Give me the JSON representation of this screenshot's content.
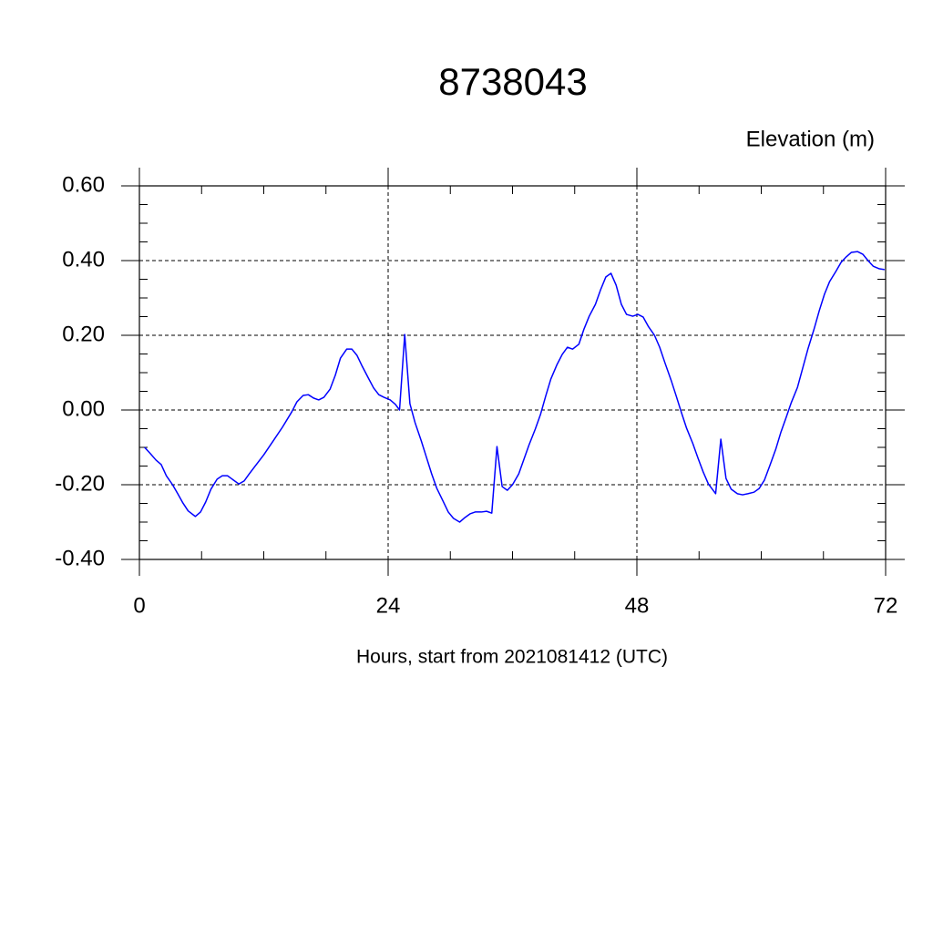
{
  "chart_data": {
    "type": "line",
    "title": "8738043",
    "y_label": "Elevation (m)",
    "x_label": "Hours, start from 2021081412 (UTC)",
    "color": "#0000ff",
    "grid": true,
    "xlim": [
      0,
      72
    ],
    "ylim": [
      -0.4,
      0.6
    ],
    "xticks": [
      0,
      24,
      48,
      72
    ],
    "xminorticks": [
      6,
      12,
      18,
      30,
      36,
      42,
      54,
      60,
      66
    ],
    "yticks": [
      {
        "value": -0.4,
        "label": "-0.40"
      },
      {
        "value": -0.2,
        "label": "-0.20"
      },
      {
        "value": 0,
        "label": "0.00"
      },
      {
        "value": 0.2,
        "label": "0.20"
      },
      {
        "value": 0.4,
        "label": "0.40"
      },
      {
        "value": 0.6,
        "label": "0.60"
      }
    ],
    "yminorticks": [
      -0.35,
      -0.3,
      -0.25,
      -0.15,
      -0.1,
      -0.05,
      0.05,
      0.1,
      0.15,
      0.25,
      0.3,
      0.35,
      0.45,
      0.5,
      0.55
    ],
    "x": [
      0.5,
      1.0,
      1.6,
      2.1,
      2.6,
      3.2,
      3.7,
      4.2,
      4.7,
      5.4,
      5.9,
      6.4,
      6.9,
      7.5,
      8.0,
      8.5,
      9.1,
      9.6,
      10.1,
      10.6,
      11.2,
      12.0,
      12.9,
      13.8,
      14.7,
      15.2,
      15.8,
      16.3,
      16.8,
      17.3,
      17.8,
      18.4,
      18.9,
      19.4,
      20.0,
      20.5,
      21.0,
      21.5,
      22.1,
      22.6,
      23.1,
      23.6,
      24.2,
      24.7,
      25.1,
      25.6,
      26.1,
      26.6,
      27.2,
      27.7,
      28.2,
      28.7,
      29.3,
      29.8,
      30.3,
      30.9,
      31.4,
      31.9,
      32.4,
      33.0,
      33.5,
      34.0,
      34.5,
      35.0,
      35.5,
      36.0,
      36.6,
      37.1,
      37.6,
      38.2,
      38.7,
      39.2,
      39.7,
      40.3,
      40.8,
      41.3,
      41.8,
      42.4,
      42.9,
      43.4,
      44.0,
      44.5,
      45.0,
      45.5,
      46.0,
      46.5,
      47.0,
      47.6,
      48.1,
      48.6,
      49.1,
      49.7,
      50.2,
      50.7,
      51.3,
      51.8,
      52.3,
      52.8,
      53.4,
      53.9,
      54.4,
      54.9,
      55.6,
      56.1,
      56.6,
      57.1,
      57.7,
      58.2,
      58.7,
      59.3,
      59.8,
      60.3,
      60.8,
      61.4,
      61.9,
      62.4,
      62.9,
      63.5,
      64.0,
      64.5,
      65.1,
      65.6,
      66.1,
      66.6,
      67.2,
      67.7,
      68.2,
      68.7,
      69.3,
      69.8,
      70.3,
      70.8,
      71.4,
      71.9
    ],
    "values": [
      -0.1,
      -0.115,
      -0.134,
      -0.146,
      -0.176,
      -0.2,
      -0.224,
      -0.249,
      -0.27,
      -0.285,
      -0.273,
      -0.246,
      -0.212,
      -0.185,
      -0.176,
      -0.176,
      -0.188,
      -0.198,
      -0.19,
      -0.171,
      -0.149,
      -0.12,
      -0.083,
      -0.046,
      -0.005,
      0.022,
      0.039,
      0.041,
      0.032,
      0.027,
      0.034,
      0.056,
      0.093,
      0.139,
      0.163,
      0.163,
      0.146,
      0.117,
      0.085,
      0.059,
      0.041,
      0.034,
      0.027,
      0.015,
      0.0,
      0.202,
      0.017,
      -0.034,
      -0.083,
      -0.127,
      -0.171,
      -0.21,
      -0.244,
      -0.273,
      -0.29,
      -0.3,
      -0.288,
      -0.278,
      -0.273,
      -0.273,
      -0.271,
      -0.276,
      -0.098,
      -0.205,
      -0.215,
      -0.2,
      -0.171,
      -0.132,
      -0.093,
      -0.051,
      -0.012,
      0.037,
      0.083,
      0.122,
      0.149,
      0.168,
      0.163,
      0.176,
      0.217,
      0.251,
      0.283,
      0.322,
      0.356,
      0.366,
      0.334,
      0.283,
      0.256,
      0.251,
      0.256,
      0.249,
      0.224,
      0.2,
      0.168,
      0.127,
      0.08,
      0.037,
      -0.007,
      -0.049,
      -0.09,
      -0.129,
      -0.166,
      -0.198,
      -0.224,
      -0.078,
      -0.183,
      -0.212,
      -0.224,
      -0.227,
      -0.224,
      -0.22,
      -0.21,
      -0.188,
      -0.151,
      -0.105,
      -0.059,
      -0.02,
      0.02,
      0.061,
      0.112,
      0.163,
      0.217,
      0.266,
      0.31,
      0.344,
      0.371,
      0.395,
      0.41,
      0.422,
      0.424,
      0.417,
      0.4,
      0.385,
      0.378,
      0.376
    ]
  }
}
